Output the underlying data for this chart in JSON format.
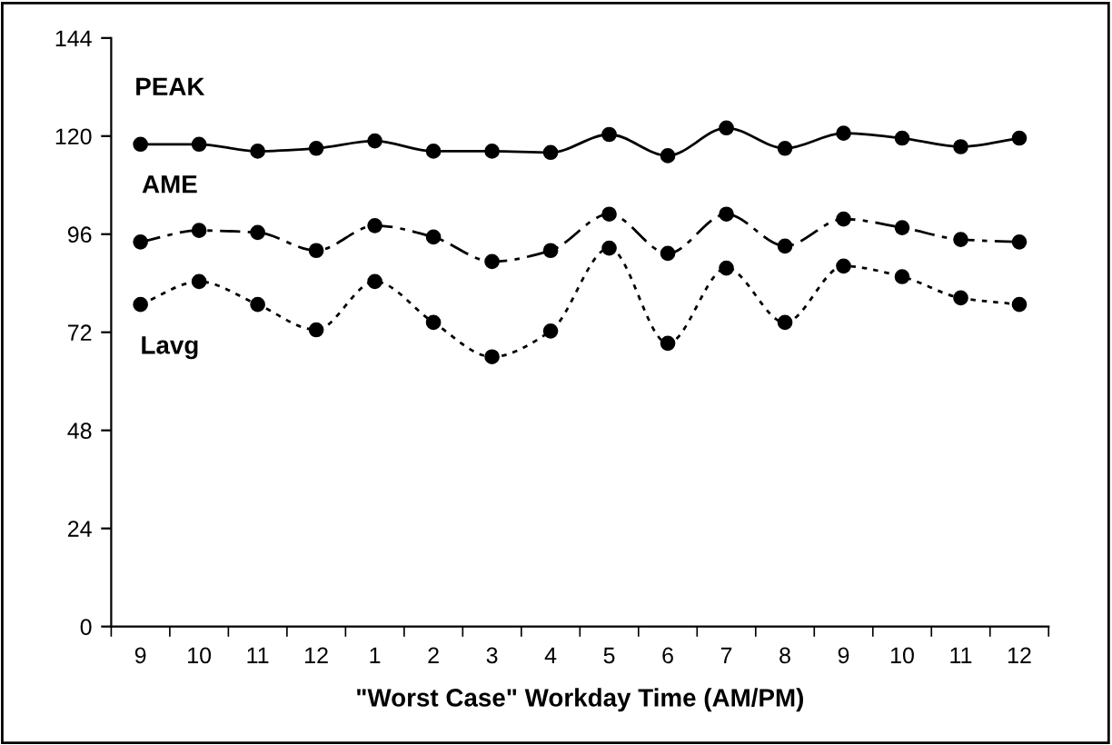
{
  "chart_data": {
    "type": "line",
    "xlabel": "\"Worst Case\" Workday Time (AM/PM)",
    "categories": [
      "9",
      "10",
      "11",
      "12",
      "1",
      "2",
      "3",
      "4",
      "5",
      "6",
      "7",
      "8",
      "9",
      "10",
      "11",
      "12"
    ],
    "series": [
      {
        "name": "PEAK",
        "color": "#000000",
        "line_style": "solid",
        "values": [
          118,
          118,
          116.3,
          117,
          118.8,
          116.3,
          116.3,
          116,
          120.4,
          115.2,
          122,
          117,
          120.7,
          119.5,
          117.4,
          119.5
        ]
      },
      {
        "name": "AME",
        "color": "#000000",
        "line_style": "dashed",
        "values": [
          94.1,
          96.9,
          96.4,
          92,
          98.1,
          95.3,
          89.3,
          92,
          100.9,
          91.3,
          100.9,
          93.1,
          99.7,
          97.6,
          94.7,
          94.1
        ]
      },
      {
        "name": "Lavg",
        "color": "#000000",
        "line_style": "dotted",
        "values": [
          78.8,
          84.4,
          78.8,
          72.6,
          84.4,
          74.4,
          66,
          72.3,
          92.6,
          69.3,
          87.7,
          74.4,
          88.2,
          85.6,
          80.4,
          78.8
        ]
      }
    ],
    "ylim": [
      0,
      144
    ],
    "yticks": [
      0,
      24,
      48,
      72,
      96,
      120,
      144
    ],
    "marker": "circle",
    "grid": false,
    "legend": false
  }
}
